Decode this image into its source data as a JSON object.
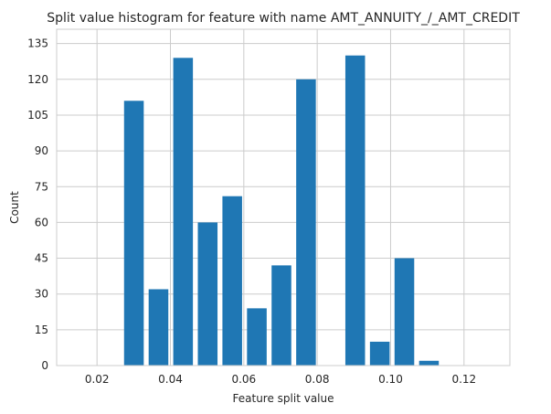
{
  "chart_data": {
    "type": "bar",
    "title": "Split value histogram for feature with name AMT_ANNUITY_/_AMT_CREDIT",
    "xlabel": "Feature split value",
    "ylabel": "Count",
    "xlim": [
      0.009,
      0.1325
    ],
    "ylim": [
      0,
      141
    ],
    "x_ticks": [
      0.02,
      0.04,
      0.06,
      0.08,
      0.1,
      0.12
    ],
    "x_tick_labels": [
      "0.02",
      "0.04",
      "0.06",
      "0.08",
      "0.10",
      "0.12"
    ],
    "y_ticks": [
      0,
      15,
      30,
      45,
      60,
      75,
      90,
      105,
      120,
      135
    ],
    "y_tick_labels": [
      "0",
      "15",
      "30",
      "45",
      "60",
      "75",
      "90",
      "105",
      "120",
      "135"
    ],
    "grid": true,
    "bar_color": "#1f77b4",
    "bars": [
      {
        "x0": 0.02,
        "x1": 0.0267,
        "value": 0
      },
      {
        "x0": 0.0267,
        "x1": 0.0334,
        "value": 111
      },
      {
        "x0": 0.0334,
        "x1": 0.0401,
        "value": 32
      },
      {
        "x0": 0.0401,
        "x1": 0.0468,
        "value": 129
      },
      {
        "x0": 0.0468,
        "x1": 0.0535,
        "value": 60
      },
      {
        "x0": 0.0535,
        "x1": 0.0602,
        "value": 71
      },
      {
        "x0": 0.0602,
        "x1": 0.0669,
        "value": 24
      },
      {
        "x0": 0.0669,
        "x1": 0.0736,
        "value": 42
      },
      {
        "x0": 0.0736,
        "x1": 0.0803,
        "value": 120
      },
      {
        "x0": 0.0803,
        "x1": 0.087,
        "value": 0
      },
      {
        "x0": 0.087,
        "x1": 0.0937,
        "value": 130
      },
      {
        "x0": 0.0937,
        "x1": 0.1004,
        "value": 10
      },
      {
        "x0": 0.1004,
        "x1": 0.1071,
        "value": 45
      },
      {
        "x0": 0.1071,
        "x1": 0.1138,
        "value": 2
      },
      {
        "x0": 0.1138,
        "x1": 0.1205,
        "value": 0
      }
    ]
  }
}
